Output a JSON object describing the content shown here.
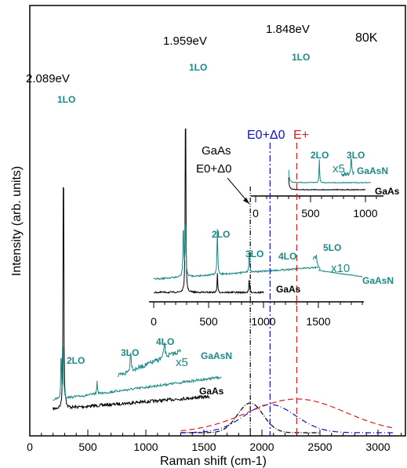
{
  "colors": {
    "gaas": "#000000",
    "gaasn": "#1a8a86",
    "e0_delta0": "#1010cc",
    "e_plus": "#dd2020",
    "axis": "#000000"
  },
  "chart_data": {
    "type": "line",
    "temperature": "80K",
    "xlabel": "Raman shift (cm-1)",
    "ylabel": "Intensity (arb. units)",
    "xlim": [
      0,
      3200
    ],
    "xticks": [
      "0",
      "500",
      "1000",
      "1500",
      "2000",
      "2500",
      "3000"
    ],
    "annotations": {
      "energy_1": "2.089eV",
      "energy_2": "1.959eV",
      "energy_3": "1.848eV",
      "gaas_transition_line1": "GaAs",
      "gaas_transition_line2": "E0+Δ0",
      "e0_delta0": "E0+Δ0",
      "e_plus": "E+"
    },
    "spectra": [
      {
        "excitation": "2.089eV",
        "x_offset": 0,
        "xticks": [
          "0",
          "500",
          "1000",
          "1500",
          "2000",
          "2500",
          "3000"
        ],
        "series": [
          {
            "name": "GaAs",
            "peaks": [
              [
                290,
                1.0
              ]
            ]
          },
          {
            "name": "GaAsN",
            "peaks": [
              [
                290,
                0.22
              ],
              [
                580,
                0.05
              ],
              [
                870,
                0.09
              ],
              [
                1160,
                0.12
              ]
            ],
            "magnification": "x5"
          }
        ],
        "labels": {
          "p1": "1LO",
          "p2": "2LO",
          "p3": "3LO",
          "p4": "4LO",
          "mag": "x5",
          "gaasn": "GaAsN",
          "gaas": "GaAs"
        }
      },
      {
        "excitation": "1.959eV",
        "x_offset": 1355,
        "xticks": [
          "0",
          "500",
          "1000",
          "1500"
        ],
        "series": [
          {
            "name": "GaAs",
            "peaks": [
              [
                290,
                1.0
              ],
              [
                580,
                0.08
              ]
            ]
          },
          {
            "name": "GaAsN",
            "peaks": [
              [
                580,
                0.2
              ],
              [
                870,
                0.1
              ],
              [
                1160,
                0.06
              ],
              [
                1450,
                0.05
              ]
            ],
            "magnification": "x10"
          }
        ],
        "labels": {
          "p1": "1LO",
          "p2": "2LO",
          "p3": "3LO",
          "p4": "4LO",
          "p5": "5LO",
          "mag": "x10",
          "gaasn": "GaAsN",
          "gaas": "GaAs"
        }
      },
      {
        "excitation": "1.848eV",
        "x_offset": 2280,
        "xticks": [
          "0",
          "500",
          "1000"
        ],
        "series": [
          {
            "name": "GaAs",
            "peaks": [
              [
                290,
                1.0
              ]
            ]
          },
          {
            "name": "GaAsN",
            "peaks": [
              [
                580,
                0.12
              ],
              [
                870,
                0.1
              ]
            ],
            "magnification": "x5"
          }
        ],
        "labels": {
          "p1": "1LO",
          "p2": "2LO",
          "p3": "3LO",
          "mag": "x5",
          "gaasn": "GaAsN",
          "gaas": "GaAs"
        }
      }
    ],
    "transitions_cm": {
      "gaas_e0_delta0": 1900,
      "e0_delta0": 2070,
      "e_plus": 2300
    }
  }
}
